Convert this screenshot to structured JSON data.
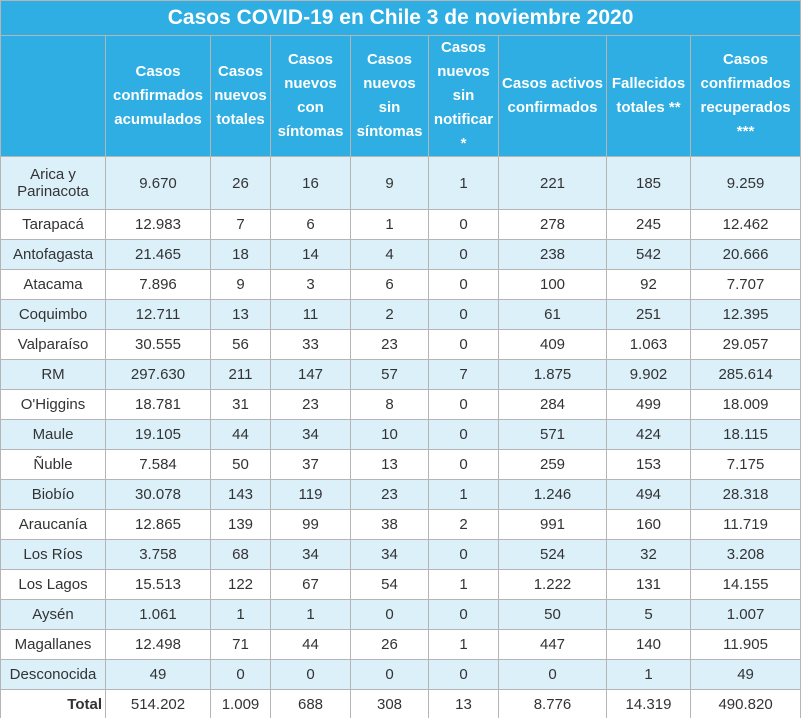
{
  "title": "Casos COVID-19 en Chile 3 de noviembre 2020",
  "headers": [
    "Casos confirmados acumulados",
    "Casos nuevos totales",
    "Casos nuevos con síntomas",
    "Casos nuevos sin síntomas",
    "Casos nuevos sin notificar *",
    "Casos activos confirmados",
    "Fallecidos totales **",
    "Casos confirmados recuperados ***"
  ],
  "rows": [
    [
      "Arica y Parinacota",
      "9.670",
      "26",
      "16",
      "9",
      "1",
      "221",
      "185",
      "9.259"
    ],
    [
      "Tarapacá",
      "12.983",
      "7",
      "6",
      "1",
      "0",
      "278",
      "245",
      "12.462"
    ],
    [
      "Antofagasta",
      "21.465",
      "18",
      "14",
      "4",
      "0",
      "238",
      "542",
      "20.666"
    ],
    [
      "Atacama",
      "7.896",
      "9",
      "3",
      "6",
      "0",
      "100",
      "92",
      "7.707"
    ],
    [
      "Coquimbo",
      "12.711",
      "13",
      "11",
      "2",
      "0",
      "61",
      "251",
      "12.395"
    ],
    [
      "Valparaíso",
      "30.555",
      "56",
      "33",
      "23",
      "0",
      "409",
      "1.063",
      "29.057"
    ],
    [
      "RM",
      "297.630",
      "211",
      "147",
      "57",
      "7",
      "1.875",
      "9.902",
      "285.614"
    ],
    [
      "O'Higgins",
      "18.781",
      "31",
      "23",
      "8",
      "0",
      "284",
      "499",
      "18.009"
    ],
    [
      "Maule",
      "19.105",
      "44",
      "34",
      "10",
      "0",
      "571",
      "424",
      "18.115"
    ],
    [
      "Ñuble",
      "7.584",
      "50",
      "37",
      "13",
      "0",
      "259",
      "153",
      "7.175"
    ],
    [
      "Biobío",
      "30.078",
      "143",
      "119",
      "23",
      "1",
      "1.246",
      "494",
      "28.318"
    ],
    [
      "Araucanía",
      "12.865",
      "139",
      "99",
      "38",
      "2",
      "991",
      "160",
      "11.719"
    ],
    [
      "Los Ríos",
      "3.758",
      "68",
      "34",
      "34",
      "0",
      "524",
      "32",
      "3.208"
    ],
    [
      "Los Lagos",
      "15.513",
      "122",
      "67",
      "54",
      "1",
      "1.222",
      "131",
      "14.155"
    ],
    [
      "Aysén",
      "1.061",
      "1",
      "1",
      "0",
      "0",
      "50",
      "5",
      "1.007"
    ],
    [
      "Magallanes",
      "12.498",
      "71",
      "44",
      "26",
      "1",
      "447",
      "140",
      "11.905"
    ],
    [
      "Desconocida",
      "49",
      "0",
      "0",
      "0",
      "0",
      "0",
      "1",
      "49"
    ]
  ],
  "total": [
    "Total",
    "514.202",
    "1.009",
    "688",
    "308",
    "13",
    "8.776",
    "14.319",
    "490.820"
  ]
}
